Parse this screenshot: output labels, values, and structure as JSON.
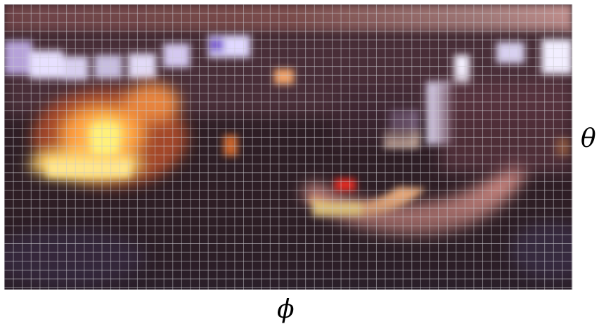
{
  "axes": {
    "horizontal_label": "ϕ",
    "vertical_label": "θ"
  },
  "image": {
    "kind": "equirectangular environment map (pixelated)",
    "grid_overlay": true,
    "dominant_colors": [
      "#2c1d22",
      "#5a3440",
      "#ffd86a",
      "#ff9a3a",
      "#cfc2ff",
      "#8e5a6a"
    ]
  }
}
